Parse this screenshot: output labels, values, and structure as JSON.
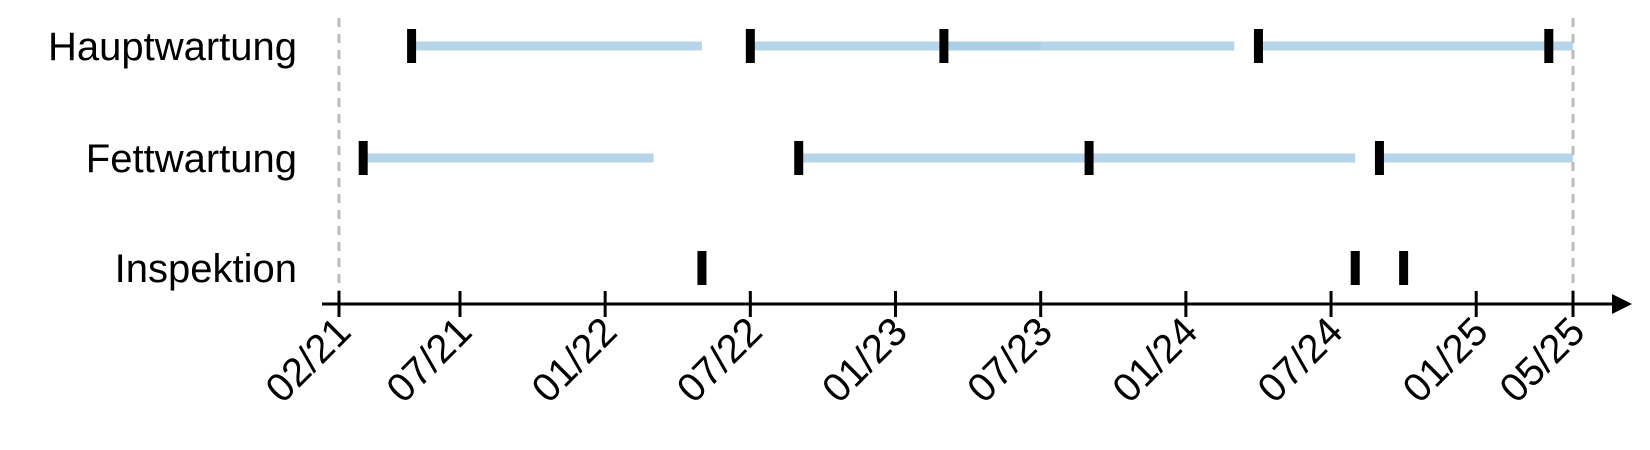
{
  "chart_data": {
    "type": "timeline",
    "title": "",
    "xlabel": "",
    "ylabel": "",
    "xlim": [
      "2021-02",
      "2025-05"
    ],
    "x_ticks": [
      {
        "date": "2021-02",
        "label": "02/21"
      },
      {
        "date": "2021-07",
        "label": "07/21"
      },
      {
        "date": "2022-01",
        "label": "01/22"
      },
      {
        "date": "2022-07",
        "label": "07/22"
      },
      {
        "date": "2023-01",
        "label": "01/23"
      },
      {
        "date": "2023-07",
        "label": "07/23"
      },
      {
        "date": "2024-01",
        "label": "01/24"
      },
      {
        "date": "2024-07",
        "label": "07/24"
      },
      {
        "date": "2025-01",
        "label": "01/25"
      },
      {
        "date": "2025-05",
        "label": "05/25"
      }
    ],
    "rows": [
      {
        "label": "Hauptwartung",
        "events": [
          "2021-05",
          "2022-07",
          "2023-03",
          "2024-04",
          "2025-04"
        ],
        "intervals": [
          {
            "start": "2021-05",
            "end": "2022-05"
          },
          {
            "start": "2022-07",
            "end": "2023-07"
          },
          {
            "start": "2023-03",
            "end": "2024-03"
          },
          {
            "start": "2024-04",
            "end": "2025-05"
          }
        ]
      },
      {
        "label": "Fettwartung",
        "events": [
          "2021-03",
          "2022-09",
          "2023-09",
          "2024-09"
        ],
        "intervals": [
          {
            "start": "2021-03",
            "end": "2022-03"
          },
          {
            "start": "2022-09",
            "end": "2023-09"
          },
          {
            "start": "2023-09",
            "end": "2024-08"
          },
          {
            "start": "2024-09",
            "end": "2025-05"
          }
        ]
      },
      {
        "label": "Inspektion",
        "events": [
          "2022-05",
          "2024-08",
          "2024-10"
        ],
        "intervals": []
      }
    ],
    "interval_color": "#a9cce6",
    "event_color": "#000000",
    "boundary_line_color": "#bbbbbb",
    "grid": false,
    "legend": "none"
  }
}
